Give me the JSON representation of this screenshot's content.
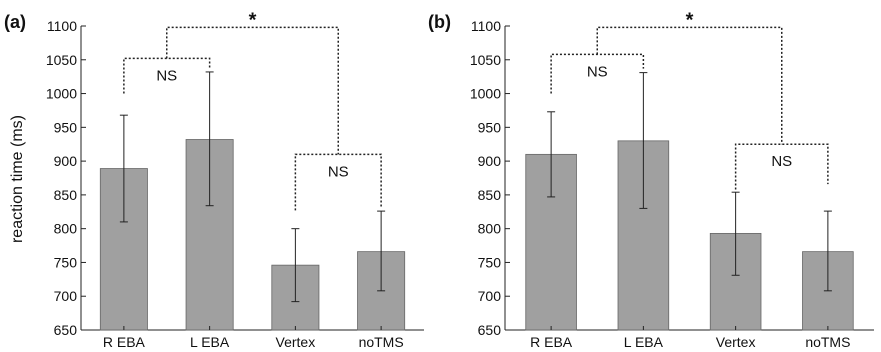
{
  "ylabel": "reaction time (ms)",
  "chart_data": [
    {
      "type": "bar",
      "panel_label": "(a)",
      "categories": [
        "R EBA",
        "L EBA",
        "Vertex",
        "noTMS"
      ],
      "values": [
        889,
        932,
        746,
        766
      ],
      "error_low": [
        810,
        834,
        692,
        708
      ],
      "error_high": [
        968,
        1032,
        800,
        826
      ],
      "ylim": [
        650,
        1100
      ],
      "yticks": [
        650,
        700,
        750,
        800,
        850,
        900,
        950,
        1000,
        1050,
        1100
      ],
      "bar_color": "#a0a0a0",
      "annotations": [
        {
          "text": "NS",
          "between": [
            "R EBA",
            "L EBA"
          ]
        },
        {
          "text": "NS",
          "between": [
            "Vertex",
            "noTMS"
          ]
        },
        {
          "text": "*",
          "between": [
            "R EBA + L EBA",
            "Vertex + noTMS"
          ]
        }
      ]
    },
    {
      "type": "bar",
      "panel_label": "(b)",
      "categories": [
        "R EBA",
        "L EBA",
        "Vertex",
        "noTMS"
      ],
      "values": [
        910,
        930,
        793,
        766
      ],
      "error_low": [
        847,
        830,
        731,
        708
      ],
      "error_high": [
        973,
        1031,
        854,
        826
      ],
      "ylim": [
        650,
        1100
      ],
      "yticks": [
        650,
        700,
        750,
        800,
        850,
        900,
        950,
        1000,
        1050,
        1100
      ],
      "bar_color": "#a0a0a0",
      "annotations": [
        {
          "text": "NS",
          "between": [
            "R EBA",
            "L EBA"
          ]
        },
        {
          "text": "NS",
          "between": [
            "Vertex",
            "noTMS"
          ]
        },
        {
          "text": "*",
          "between": [
            "R EBA + L EBA",
            "Vertex + noTMS"
          ]
        }
      ]
    }
  ]
}
